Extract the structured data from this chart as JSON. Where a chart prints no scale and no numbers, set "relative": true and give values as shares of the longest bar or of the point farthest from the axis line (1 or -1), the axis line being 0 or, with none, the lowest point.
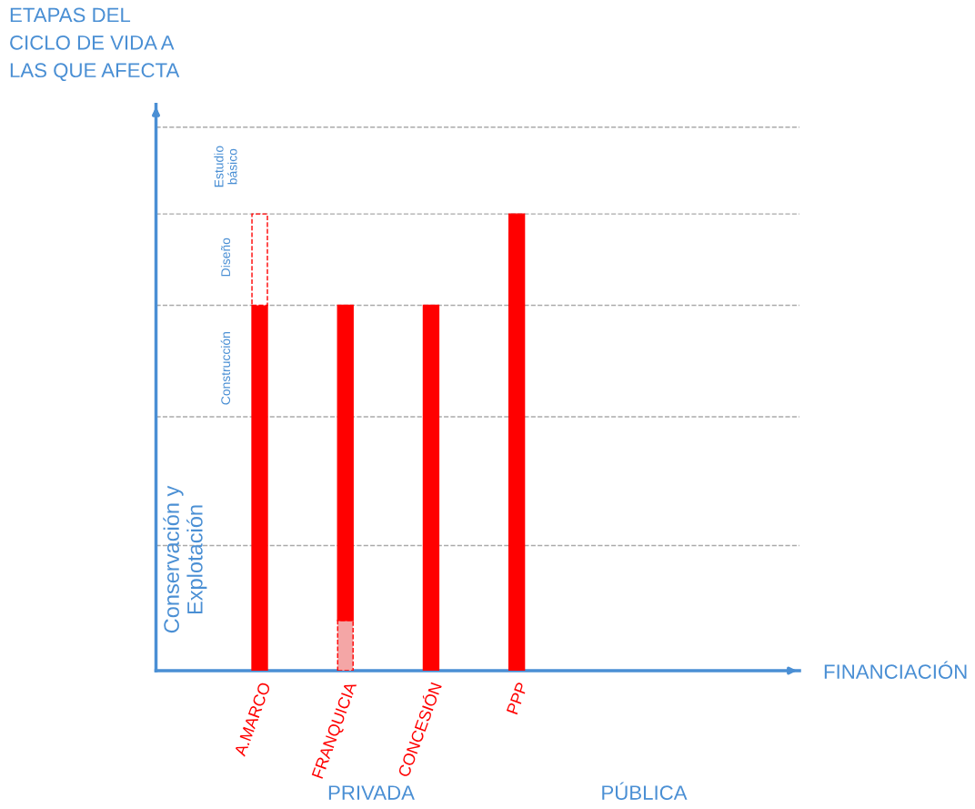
{
  "chart_data": {
    "type": "bar",
    "relative": true,
    "stacked": true,
    "xlabel": "FINANCIACIÓN",
    "categories": [
      "A.MARCO",
      "FRANQUICIA",
      "CONCESIÓN",
      "PPP",
      null,
      null
    ],
    "series": [
      {
        "color": "#f4a6a6",
        "line_style": "dashed",
        "values": [
          null,
          0.11,
          null,
          null,
          null,
          null
        ]
      },
      {
        "color": "#ff0000",
        "line_style": "solid",
        "values": [
          0.8,
          0.69,
          0.8,
          1.0,
          null,
          null
        ]
      },
      {
        "color": "#ffffff",
        "line_style": "dashed",
        "values": [
          0.2,
          null,
          null,
          null,
          null,
          null
        ]
      }
    ],
    "ref_lines": [
      {
        "axis": "y",
        "value": 0.274,
        "line_style": "dashed"
      },
      {
        "axis": "y",
        "value": 0.556,
        "line_style": "dashed"
      },
      {
        "axis": "y",
        "value": 0.8,
        "line_style": "dashed"
      },
      {
        "axis": "y",
        "value": 1.0,
        "line_style": "dashed"
      },
      {
        "axis": "y",
        "value": 1.19,
        "line_style": "dashed"
      }
    ],
    "annotations": [
      "Conservación y\nExplotación",
      "Construcción",
      "Diseño",
      "Estudio\nbásico",
      "ETAPAS DEL\nCICLO DE VIDA A\nLAS QUE AFECTA",
      "PRIVADA",
      "PÚBLICA"
    ]
  }
}
